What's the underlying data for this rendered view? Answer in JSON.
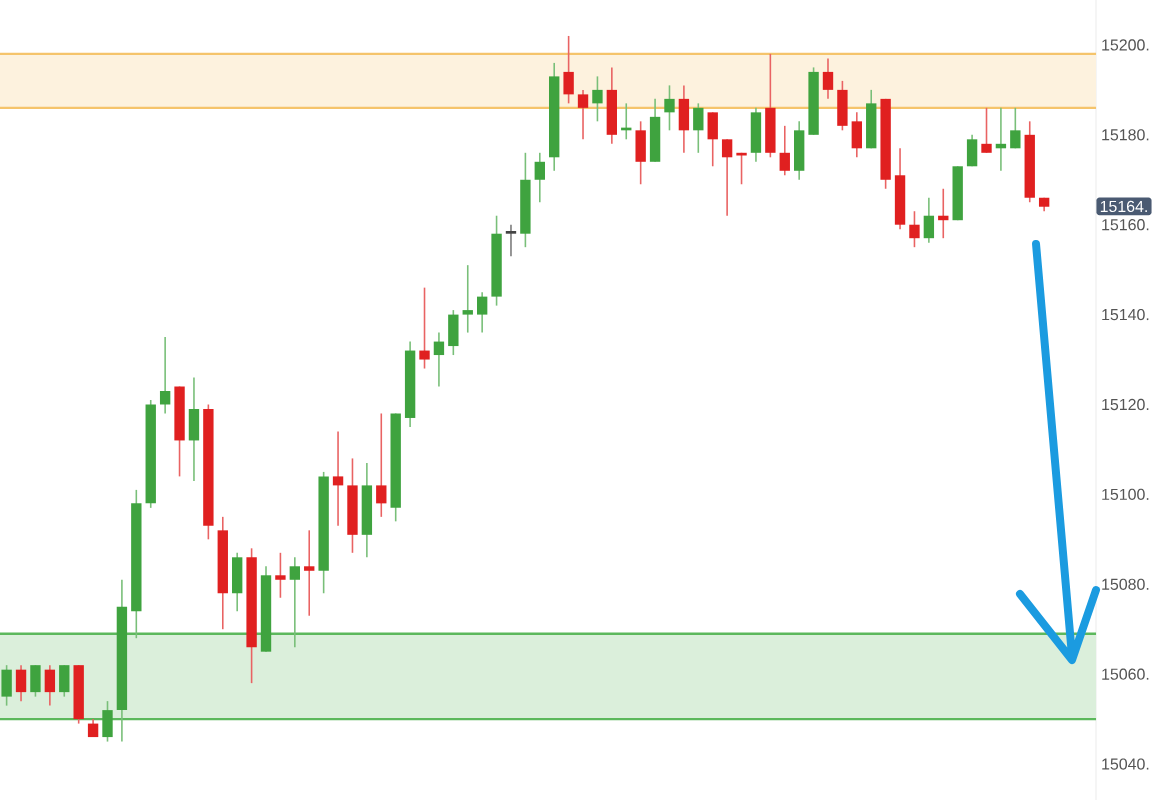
{
  "chart_data": {
    "type": "candlestick",
    "categories": [
      null,
      null,
      null,
      null,
      null,
      null,
      null,
      null,
      null,
      null,
      null,
      null,
      null,
      null,
      null,
      null,
      null,
      null,
      null,
      null,
      null,
      null,
      null,
      null,
      null,
      null,
      null,
      null,
      null,
      null,
      null,
      null,
      null,
      null,
      null,
      null,
      null,
      null,
      null,
      null,
      null,
      null,
      null,
      null,
      null,
      null,
      null,
      null,
      null,
      null,
      null,
      null,
      null,
      null,
      null,
      null,
      null,
      null,
      null,
      null,
      null,
      null,
      null,
      null,
      null,
      null,
      null,
      null,
      null,
      null,
      null,
      null,
      null
    ],
    "ohlc": [
      [
        15055,
        15062,
        15053,
        15061
      ],
      [
        15061,
        15062,
        15054,
        15056
      ],
      [
        15056,
        15062,
        15055,
        15062
      ],
      [
        15061,
        15062,
        15053,
        15056
      ],
      [
        15056,
        15062,
        15055,
        15062
      ],
      [
        15062,
        15062,
        15049,
        15050
      ],
      [
        15049,
        15050,
        15046,
        15046
      ],
      [
        15046,
        15054,
        15045,
        15052
      ],
      [
        15052,
        15081,
        15045,
        15075
      ],
      [
        15074,
        15101,
        15068,
        15098
      ],
      [
        15098,
        15121,
        15097,
        15120
      ],
      [
        15120,
        15135,
        15118,
        15123
      ],
      [
        15124,
        15124,
        15104,
        15112
      ],
      [
        15112,
        15126,
        15103,
        15119
      ],
      [
        15119,
        15120,
        15090,
        15093
      ],
      [
        15092,
        15095,
        15070,
        15078
      ],
      [
        15078,
        15087,
        15074,
        15086
      ],
      [
        15086,
        15088,
        15058,
        15066
      ],
      [
        15065,
        15084,
        15065,
        15082
      ],
      [
        15082,
        15087,
        15077,
        15081
      ],
      [
        15081,
        15086,
        15066,
        15084
      ],
      [
        15084,
        15092,
        15073,
        15083
      ],
      [
        15083,
        15105,
        15078,
        15104
      ],
      [
        15104,
        15114,
        15093,
        15102
      ],
      [
        15102,
        15108,
        15087,
        15091
      ],
      [
        15091,
        15107,
        15086,
        15102
      ],
      [
        15102,
        15118,
        15095,
        15098
      ],
      [
        15097,
        15118,
        15094,
        15118
      ],
      [
        15117,
        15134,
        15115,
        15132
      ],
      [
        15132,
        15146,
        15128,
        15130
      ],
      [
        15131,
        15136,
        15124,
        15134
      ],
      [
        15133,
        15141,
        15131,
        15140
      ],
      [
        15140,
        15151,
        15136,
        15141
      ],
      [
        15140,
        15145,
        15136,
        15144
      ],
      [
        15144,
        15162,
        15142,
        15158
      ],
      [
        15158,
        15160,
        15153,
        15158
      ],
      [
        15158,
        15176,
        15155,
        15170
      ],
      [
        15170,
        15176,
        15165,
        15174
      ],
      [
        15175,
        15196,
        15172,
        15193
      ],
      [
        15194,
        15202,
        15187,
        15189
      ],
      [
        15189,
        15190,
        15179,
        15186
      ],
      [
        15187,
        15193,
        15183,
        15190
      ],
      [
        15190,
        15195,
        15178,
        15180
      ],
      [
        15181,
        15187,
        15179,
        15181.5
      ],
      [
        15181,
        15183,
        15169,
        15174
      ],
      [
        15174,
        15188,
        15174,
        15184
      ],
      [
        15185,
        15191,
        15181,
        15188
      ],
      [
        15188,
        15191,
        15176,
        15181
      ],
      [
        15181,
        15187,
        15176,
        15186
      ],
      [
        15185,
        15185,
        15173,
        15179
      ],
      [
        15179,
        15179,
        15162,
        15175
      ],
      [
        15176,
        15176,
        15169,
        15175.4
      ],
      [
        15176,
        15186,
        15174,
        15185
      ],
      [
        15186,
        15198,
        15175,
        15176
      ],
      [
        15176,
        15182,
        15171,
        15172
      ],
      [
        15172,
        15183,
        15170,
        15181
      ],
      [
        15180,
        15195,
        15180,
        15194
      ],
      [
        15194,
        15197,
        15188,
        15190
      ],
      [
        15190,
        15192,
        15181,
        15182
      ],
      [
        15183,
        15185,
        15175,
        15177
      ],
      [
        15177,
        15190,
        15177,
        15187
      ],
      [
        15188,
        15188,
        15168,
        15170
      ],
      [
        15171,
        15177,
        15159,
        15160
      ],
      [
        15160,
        15163,
        15155,
        15157
      ],
      [
        15157,
        15166,
        15156,
        15162
      ],
      [
        15162,
        15168,
        15157,
        15161
      ],
      [
        15161,
        15173,
        15161,
        15173
      ],
      [
        15173,
        15180,
        15173,
        15179
      ],
      [
        15178,
        15186,
        15176,
        15176
      ],
      [
        15177,
        15186,
        15172,
        15178
      ],
      [
        15177,
        15186,
        15177,
        15181
      ],
      [
        15180,
        15183,
        15165,
        15166
      ],
      [
        15166,
        15166,
        15163,
        15164
      ]
    ],
    "ylim": [
      15032,
      15210
    ],
    "yticks": [
      {
        "value": 15040,
        "label": "15040."
      },
      {
        "value": 15060,
        "label": "15060."
      },
      {
        "value": 15080,
        "label": "15080."
      },
      {
        "value": 15100,
        "label": "15100."
      },
      {
        "value": 15120,
        "label": "15120."
      },
      {
        "value": 15140,
        "label": "15140."
      },
      {
        "value": 15160,
        "label": "15160."
      },
      {
        "value": 15180,
        "label": "15180."
      },
      {
        "value": 15200,
        "label": "15200."
      }
    ],
    "tick_labels": "y",
    "bands": [
      {
        "axis": "y",
        "from": 15186,
        "to": 15198,
        "color": "#fdf2de"
      },
      {
        "axis": "y",
        "from": 15050,
        "to": 15069,
        "color": "#dbefdb"
      }
    ],
    "ref_lines": [
      {
        "axis": "y",
        "value": 15186,
        "color": "#f5c46b"
      },
      {
        "axis": "y",
        "value": 15198,
        "color": "#f5c46b"
      },
      {
        "axis": "y",
        "value": 15050,
        "color": "#5cb85c"
      },
      {
        "axis": "y",
        "value": 15069,
        "color": "#5cb85c"
      }
    ],
    "annotations": [
      "15164."
    ]
  }
}
